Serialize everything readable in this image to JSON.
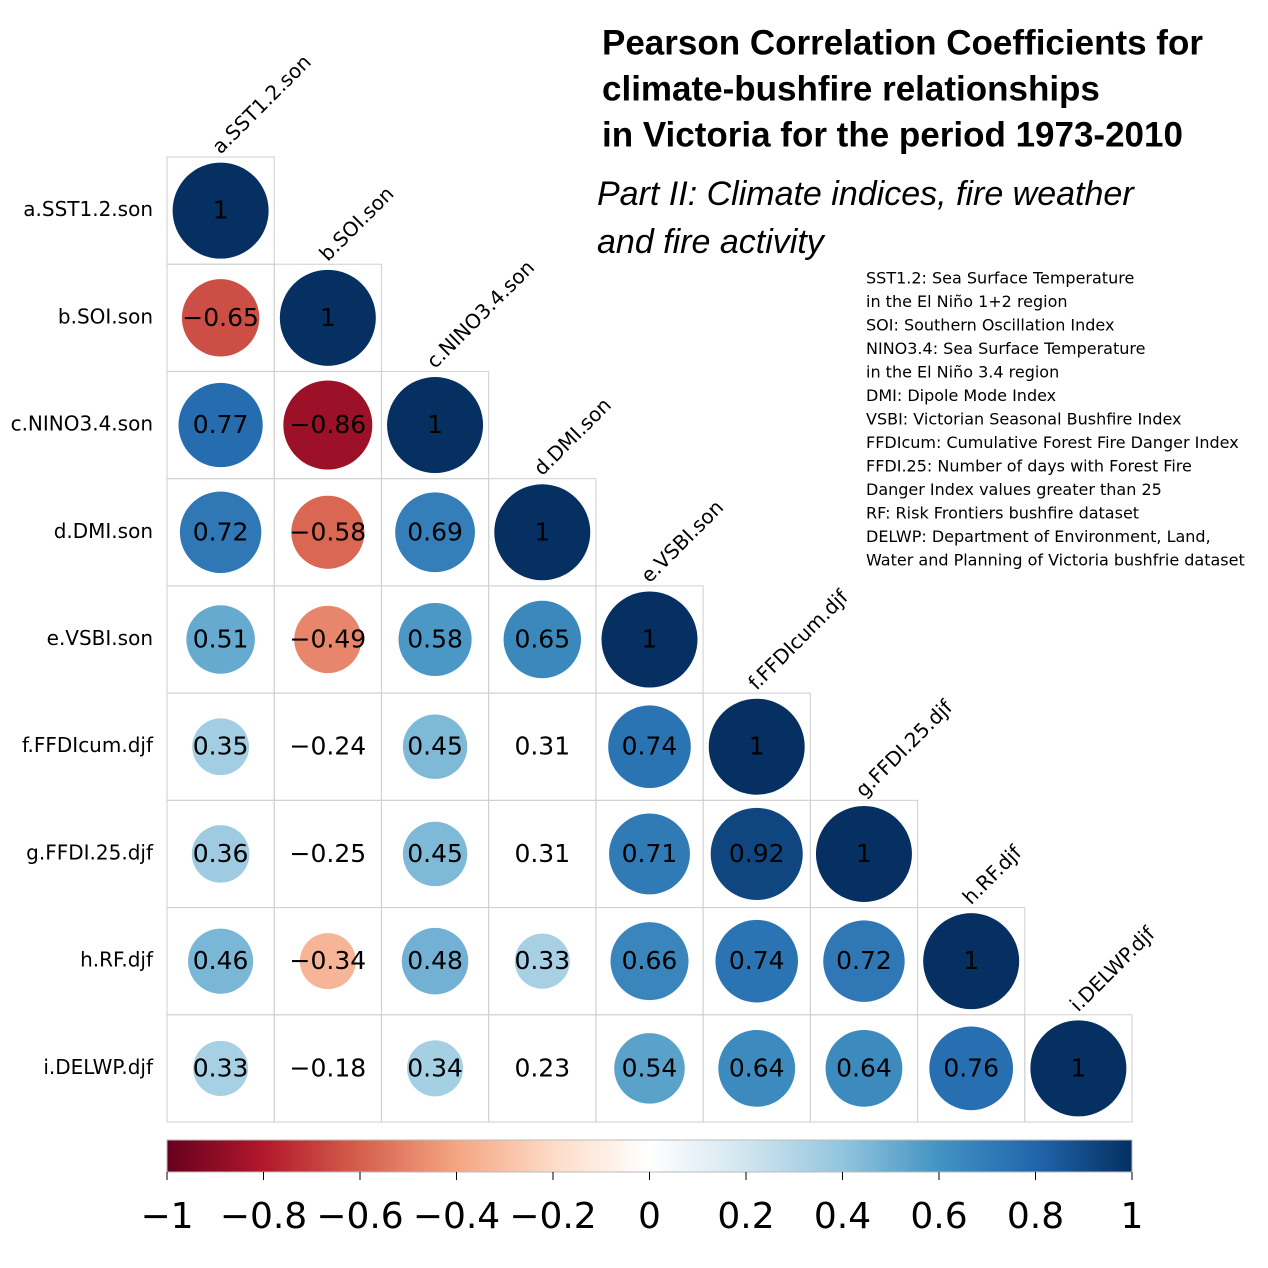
{
  "chart_data": {
    "type": "corrplot",
    "title": [
      "Pearson Correlation Coefficients for",
      "climate-bushfire relationships",
      "in Victoria for the period 1973-2010"
    ],
    "subtitle": [
      "Part II: Climate indices, fire weather",
      "and fire activity"
    ],
    "notes": [
      "SST1.2: Sea Surface Temperature",
      "in the El Niño 1+2 region",
      "SOI: Southern Oscillation Index",
      "NINO3.4: Sea Surface Temperature",
      "in the El Niño 3.4 region",
      "DMI: Dipole Mode Index",
      "VSBI: Victorian Seasonal Bushfire Index",
      "FFDIcum: Cumulative Forest Fire Danger Index",
      "FFDI.25: Number of days with Forest Fire",
      "Danger Index values greater than 25",
      "RF: Risk Frontiers bushfire dataset",
      "DELWP: Department of Environment, Land,",
      "Water and Planning of Victoria bushfrie dataset"
    ],
    "variables": [
      "a.SST1.2.son",
      "b.SOI.son",
      "c.NINO3.4.son",
      "d.DMI.son",
      "e.VSBI.son",
      "f.FFDIcum.djf",
      "g.FFDI.25.djf",
      "h.RF.djf",
      "i.DELWP.djf"
    ],
    "matrix": [
      [
        1,
        null,
        null,
        null,
        null,
        null,
        null,
        null,
        null
      ],
      [
        -0.65,
        1,
        null,
        null,
        null,
        null,
        null,
        null,
        null
      ],
      [
        0.77,
        -0.86,
        1,
        null,
        null,
        null,
        null,
        null,
        null
      ],
      [
        0.72,
        -0.58,
        0.69,
        1,
        null,
        null,
        null,
        null,
        null
      ],
      [
        0.51,
        -0.49,
        0.58,
        0.65,
        1,
        null,
        null,
        null,
        null
      ],
      [
        0.35,
        -0.24,
        0.45,
        0.31,
        0.74,
        1,
        null,
        null,
        null
      ],
      [
        0.36,
        -0.25,
        0.45,
        0.31,
        0.71,
        0.92,
        1,
        null,
        null
      ],
      [
        0.46,
        -0.34,
        0.48,
        0.33,
        0.66,
        0.74,
        0.72,
        1,
        null
      ],
      [
        0.33,
        -0.18,
        0.34,
        0.23,
        0.54,
        0.64,
        0.64,
        0.76,
        1
      ]
    ],
    "value_labels": [
      [
        "1",
        null,
        null,
        null,
        null,
        null,
        null,
        null,
        null
      ],
      [
        "−0.65",
        "1",
        null,
        null,
        null,
        null,
        null,
        null,
        null
      ],
      [
        "0.77",
        "−0.86",
        "1",
        null,
        null,
        null,
        null,
        null,
        null
      ],
      [
        "0.72",
        "−0.58",
        "0.69",
        "1",
        null,
        null,
        null,
        null,
        null
      ],
      [
        "0.51",
        "−0.49",
        "0.58",
        "0.65",
        "1",
        null,
        null,
        null,
        null
      ],
      [
        "0.35",
        "−0.24",
        "0.45",
        "0.31",
        "0.74",
        "1",
        null,
        null,
        null
      ],
      [
        "0.36",
        "−0.25",
        "0.45",
        "0.31",
        "0.71",
        "0.92",
        "1",
        null,
        null
      ],
      [
        "0.46",
        "−0.34",
        "0.48",
        "0.33",
        "0.66",
        "0.74",
        "0.72",
        "1",
        null
      ],
      [
        "0.33",
        "−0.18",
        "0.34",
        "0.23",
        "0.54",
        "0.64",
        "0.64",
        "0.76",
        "1"
      ]
    ],
    "significant": [
      [
        true,
        null,
        null,
        null,
        null,
        null,
        null,
        null,
        null
      ],
      [
        true,
        true,
        null,
        null,
        null,
        null,
        null,
        null,
        null
      ],
      [
        true,
        true,
        true,
        null,
        null,
        null,
        null,
        null,
        null
      ],
      [
        true,
        true,
        true,
        true,
        null,
        null,
        null,
        null,
        null
      ],
      [
        true,
        true,
        true,
        true,
        true,
        null,
        null,
        null,
        null
      ],
      [
        true,
        false,
        true,
        false,
        true,
        true,
        null,
        null,
        null
      ],
      [
        true,
        false,
        true,
        false,
        true,
        true,
        true,
        null,
        null
      ],
      [
        true,
        true,
        true,
        true,
        true,
        true,
        true,
        true,
        null
      ],
      [
        true,
        false,
        true,
        false,
        true,
        true,
        true,
        true,
        true
      ]
    ],
    "colorscale": [
      "#67001F",
      "#B2182B",
      "#D6604D",
      "#F4A582",
      "#FDDBC7",
      "#FFFFFF",
      "#D1E5F0",
      "#92C5DE",
      "#4393C3",
      "#2166AC",
      "#053061"
    ],
    "clim": [
      -1,
      1
    ],
    "cticks": [
      {
        "value": -1,
        "label": "−1"
      },
      {
        "value": -0.8,
        "label": "−0.8"
      },
      {
        "value": -0.6,
        "label": "−0.6"
      },
      {
        "value": -0.4,
        "label": "−0.4"
      },
      {
        "value": -0.2,
        "label": "−0.2"
      },
      0,
      0.2,
      0.4,
      0.6,
      0.8,
      1
    ]
  }
}
